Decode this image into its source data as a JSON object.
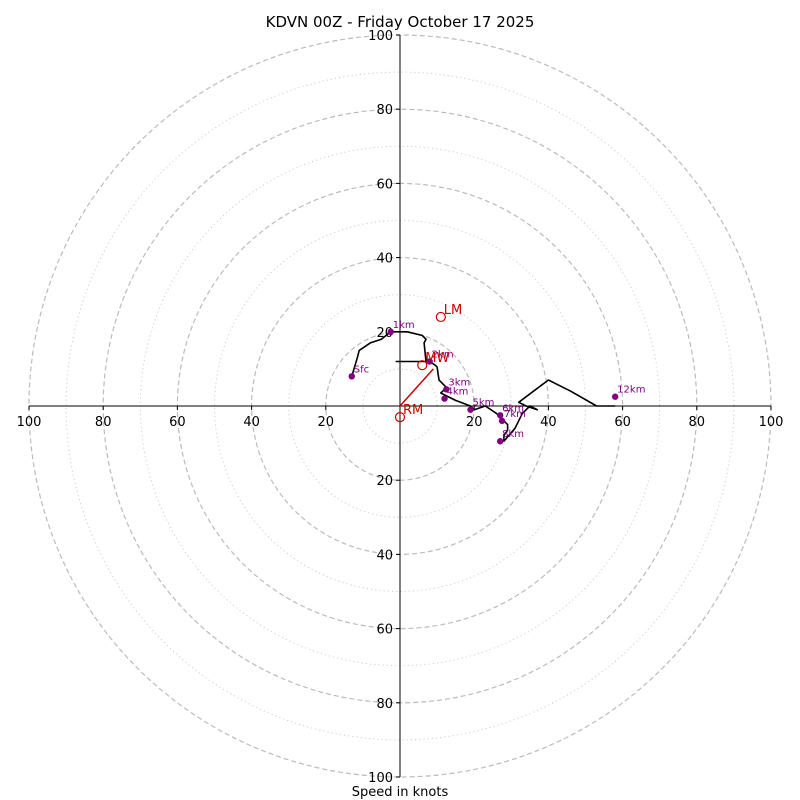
{
  "chart_data": {
    "type": "hodograph",
    "title": "KDVN 00Z - Friday October 17 2025",
    "xlabel": "Speed in knots",
    "units": "knots",
    "max_speed": 100,
    "rings_major": [
      20,
      40,
      60,
      80,
      100
    ],
    "rings_minor": [
      10,
      30,
      50,
      70,
      90
    ],
    "tick_labels": {
      "left": [
        "100",
        "80",
        "60",
        "40",
        "20"
      ],
      "right": [
        "20",
        "40",
        "60",
        "80",
        "100"
      ],
      "top": [
        "100",
        "80",
        "60",
        "40",
        "20"
      ],
      "bottom": [
        "20",
        "40",
        "60",
        "80",
        "100"
      ]
    },
    "tick_values": [
      100,
      80,
      60,
      40,
      20
    ],
    "trace": [
      [
        -13,
        8
      ],
      [
        -11.5,
        13
      ],
      [
        -11,
        15
      ],
      [
        -8,
        17
      ],
      [
        -5,
        18
      ],
      [
        -2.5,
        20
      ],
      [
        2,
        20
      ],
      [
        6,
        19
      ],
      [
        7,
        18
      ],
      [
        6.5,
        17
      ],
      [
        7,
        12
      ],
      [
        -1,
        12
      ],
      [
        8,
        12
      ],
      [
        9.5,
        11
      ],
      [
        10,
        10.5
      ],
      [
        10.5,
        7
      ],
      [
        12.5,
        5
      ],
      [
        11.5,
        4
      ],
      [
        11,
        3.5
      ],
      [
        15,
        1.5
      ],
      [
        19,
        0
      ],
      [
        20,
        -1
      ],
      [
        23,
        0
      ],
      [
        26,
        -2
      ],
      [
        27,
        -3
      ],
      [
        28,
        -4
      ],
      [
        29,
        -5
      ],
      [
        29,
        -6.5
      ],
      [
        28,
        -8
      ],
      [
        28,
        -9.5
      ],
      [
        31,
        -6
      ],
      [
        32,
        -4
      ],
      [
        33,
        -2
      ],
      [
        35,
        0
      ],
      [
        37,
        -1
      ],
      [
        34,
        0
      ],
      [
        32,
        1
      ],
      [
        40,
        7
      ],
      [
        46,
        4
      ],
      [
        53,
        0
      ],
      [
        58,
        0
      ]
    ],
    "heights": [
      {
        "label": "Sfc",
        "u": -13,
        "v": 8
      },
      {
        "label": "1km",
        "u": -2.5,
        "v": 20
      },
      {
        "label": "2km",
        "u": 8,
        "v": 12
      },
      {
        "label": "3km",
        "u": 12.5,
        "v": 4.5
      },
      {
        "label": "4km",
        "u": 12,
        "v": 2
      },
      {
        "label": "5km",
        "u": 19,
        "v": -1
      },
      {
        "label": "6km",
        "u": 27,
        "v": -2.5
      },
      {
        "label": "7km",
        "u": 27.5,
        "v": -4
      },
      {
        "label": "8km",
        "u": 27,
        "v": -9.5
      },
      {
        "label": "12km",
        "u": 58,
        "v": 2.5
      }
    ],
    "shear_vector": {
      "from": [
        0,
        0
      ],
      "to": [
        9,
        10
      ]
    },
    "storm_motion": [
      {
        "label": "LM",
        "u": 11,
        "v": 24
      },
      {
        "label": "RM",
        "u": 0,
        "v": -3
      },
      {
        "label": "MW",
        "u": 6,
        "v": 11
      }
    ],
    "colors": {
      "trace": "#000000",
      "height_marker": "#800080",
      "storm_motion": "#cc0000",
      "ring_major": "#bbbbbb",
      "ring_minor": "#cccccc",
      "axes": "#000000"
    }
  }
}
